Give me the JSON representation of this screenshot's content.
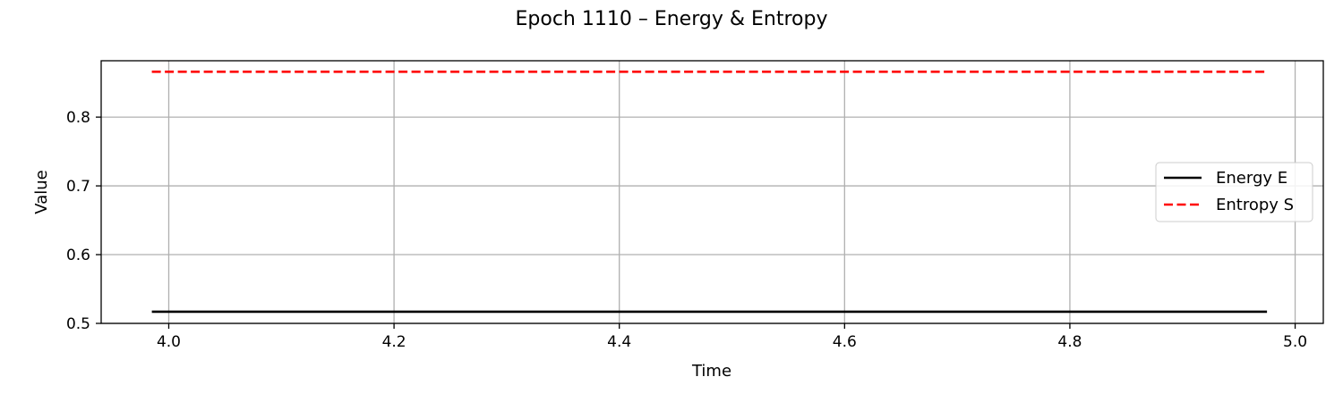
{
  "chart_data": {
    "type": "line",
    "title": "Epoch 1110 – Energy & Entropy",
    "xlabel": "Time",
    "ylabel": "Value",
    "xlim": [
      3.94,
      5.025
    ],
    "ylim": [
      0.5,
      0.882
    ],
    "xticks": [
      4.0,
      4.2,
      4.4,
      4.6,
      4.8,
      5.0
    ],
    "xtick_labels": [
      "4.0",
      "4.2",
      "4.4",
      "4.6",
      "4.8",
      "5.0"
    ],
    "yticks": [
      0.5,
      0.6,
      0.7,
      0.8
    ],
    "ytick_labels": [
      "0.5",
      "0.6",
      "0.7",
      "0.8"
    ],
    "grid": true,
    "legend_position": "center-right",
    "series": [
      {
        "name": "Energy E",
        "color": "#000000",
        "style": "solid",
        "x": [
          3.985,
          4.975
        ],
        "y": [
          0.517,
          0.517
        ]
      },
      {
        "name": "Entropy S",
        "color": "#ff0000",
        "style": "dashed",
        "x": [
          3.985,
          4.975
        ],
        "y": [
          0.866,
          0.866
        ]
      }
    ]
  }
}
